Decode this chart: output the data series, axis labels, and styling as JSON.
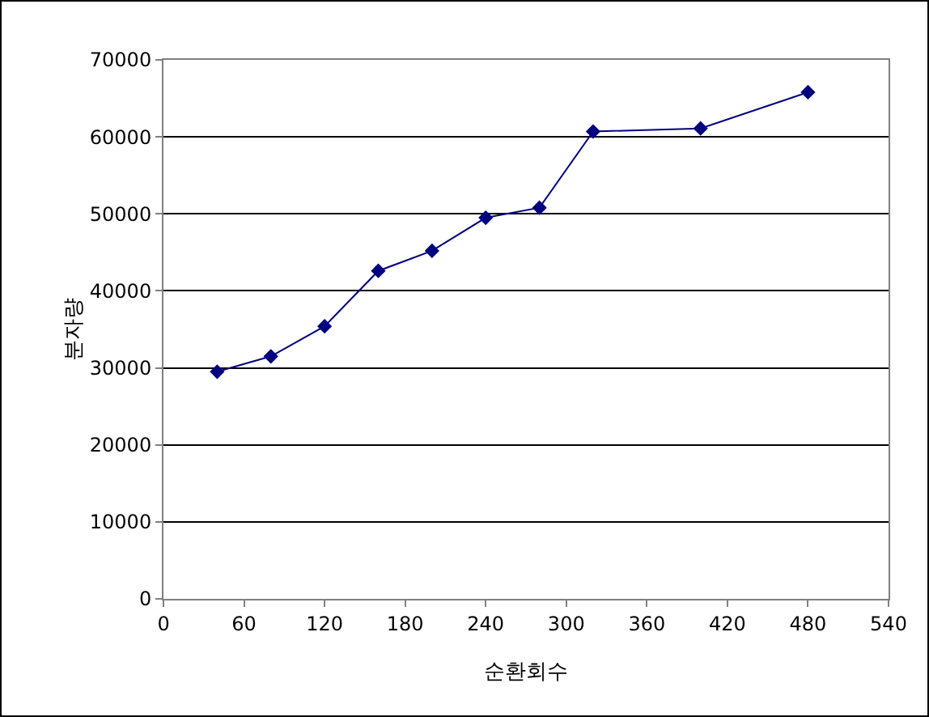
{
  "chart_data": {
    "type": "line",
    "xlabel": "순환회수",
    "ylabel": "분자량",
    "x": [
      40,
      80,
      120,
      160,
      200,
      240,
      280,
      320,
      400,
      480
    ],
    "series": [
      {
        "color": "#000080",
        "values": [
          29500,
          31500,
          35400,
          42600,
          45200,
          49500,
          50800,
          60700,
          61100,
          65800
        ]
      }
    ],
    "xlim": [
      0,
      540
    ],
    "xticks": [
      0,
      60,
      120,
      180,
      240,
      300,
      360,
      420,
      480,
      540
    ],
    "ylim": [
      0,
      70000
    ],
    "yticks": [
      0,
      10000,
      20000,
      30000,
      40000,
      50000,
      60000,
      70000
    ],
    "grid": "y",
    "legend": false,
    "marker": "diamond",
    "line_style": "solid"
  }
}
